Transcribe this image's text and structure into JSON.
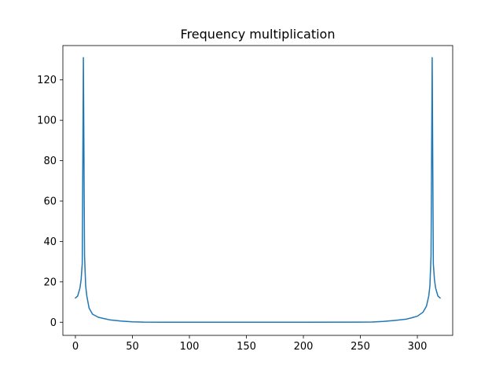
{
  "chart_data": {
    "type": "line",
    "title": "Frequency multiplication",
    "xlabel": "",
    "ylabel": "",
    "xlim": [
      -11,
      331
    ],
    "ylim": [
      -6.5,
      137
    ],
    "xticks": [
      0,
      50,
      100,
      150,
      200,
      250,
      300
    ],
    "yticks": [
      0,
      20,
      40,
      60,
      80,
      100,
      120
    ],
    "xtick_labels": [
      "0",
      "50",
      "100",
      "150",
      "200",
      "250",
      "300"
    ],
    "ytick_labels": [
      "0",
      "20",
      "40",
      "60",
      "80",
      "100",
      "120"
    ],
    "grid": false,
    "legend": "none",
    "line_color": "#1f77b4",
    "series": [
      {
        "x": [
          0,
          2,
          4,
          5,
          6,
          7,
          8,
          9,
          10,
          12,
          15,
          20,
          25,
          30,
          40,
          50,
          60,
          80,
          100,
          150,
          200,
          250,
          260,
          270,
          280,
          290,
          295,
          300,
          305,
          308,
          310,
          311,
          312,
          313,
          314,
          315,
          316,
          318,
          320
        ],
        "y": [
          12,
          13,
          17,
          21,
          29,
          131,
          33,
          18,
          13,
          7,
          4,
          2.5,
          1.8,
          1.2,
          0.6,
          0.2,
          0.05,
          0.02,
          0.02,
          0.02,
          0.02,
          0.05,
          0.1,
          0.4,
          0.9,
          1.5,
          2.2,
          3,
          5,
          8,
          13,
          18,
          33,
          131,
          29,
          21,
          17,
          13,
          12
        ]
      }
    ]
  }
}
